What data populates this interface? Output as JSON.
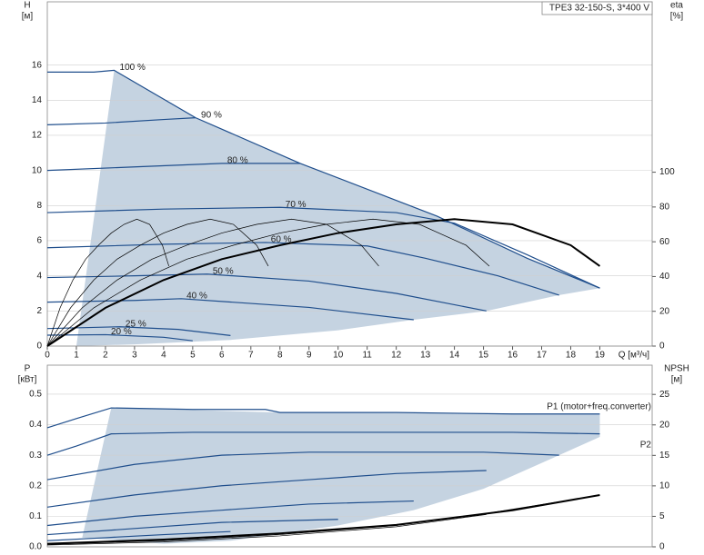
{
  "chart_data": [
    {
      "type": "line",
      "title": "TPE3 32-150-S, 3*400 V",
      "ylabel": "H",
      "yunit": "[м]",
      "y2label": "eta",
      "y2unit": "[%]",
      "xlabel": "Q [м³/ч]",
      "xlim": [
        0,
        20.8
      ],
      "xticks": [
        0,
        1,
        2,
        3,
        4,
        5,
        6,
        7,
        8,
        9,
        10,
        11,
        12,
        13,
        14,
        15,
        16,
        17,
        18,
        19
      ],
      "ylim": [
        0,
        19.6
      ],
      "yticks": [
        0,
        2,
        4,
        6,
        8,
        10,
        12,
        14,
        16
      ],
      "y2lim": [
        0,
        198
      ],
      "y2ticks": [
        0,
        20,
        40,
        60,
        80,
        100
      ],
      "grid": true,
      "label_position": "peak",
      "area_color": "#c5d3e1",
      "operating_area": {
        "x": [
          1.0,
          2.3,
          5.1,
          8.7,
          13.4,
          16.5,
          19,
          17.6,
          15.1,
          12.6,
          10,
          6.3,
          3,
          1.0
        ],
        "values": [
          0,
          15.7,
          13.0,
          10.4,
          7.4,
          5.0,
          3.3,
          2.9,
          2.0,
          1.5,
          0.9,
          0.35,
          0.1,
          0
        ]
      },
      "series": [
        {
          "name": "100 %",
          "color": "#1f4e8c",
          "x": [
            0,
            1.6,
            2.3,
            5.1,
            8.7,
            13.4,
            16.5,
            19
          ],
          "values": [
            15.6,
            15.6,
            15.7,
            13.0,
            10.4,
            7.4,
            5.0,
            3.3
          ]
        },
        {
          "name": "90 %",
          "color": "#1f4e8c",
          "x": [
            0,
            2,
            4,
            5.1
          ],
          "values": [
            12.6,
            12.7,
            12.9,
            13.0
          ]
        },
        {
          "name": "80 %",
          "color": "#1f4e8c",
          "x": [
            0,
            3,
            6,
            8.7
          ],
          "values": [
            10.0,
            10.2,
            10.4,
            10.4
          ]
        },
        {
          "name": "70 %",
          "color": "#1f4e8c",
          "x": [
            0,
            4,
            8,
            12,
            14,
            16.5,
            19
          ],
          "values": [
            7.6,
            7.8,
            7.9,
            7.6,
            7.0,
            5.2,
            3.3
          ]
        },
        {
          "name": "60 %",
          "color": "#1f4e8c",
          "x": [
            0,
            4,
            7.5,
            11,
            13,
            15.5,
            17.6
          ],
          "values": [
            5.6,
            5.8,
            5.9,
            5.7,
            5.0,
            4.0,
            2.9
          ]
        },
        {
          "name": "50 %",
          "color": "#1f4e8c",
          "x": [
            0,
            3,
            5.5,
            9,
            12,
            15.1
          ],
          "values": [
            3.9,
            4.0,
            4.1,
            3.7,
            3.0,
            2.0
          ]
        },
        {
          "name": "40 %",
          "color": "#1f4e8c",
          "x": [
            0,
            3,
            4.6,
            9,
            12.6
          ],
          "values": [
            2.5,
            2.6,
            2.7,
            2.2,
            1.5
          ]
        },
        {
          "name": "25 %",
          "color": "#1f4e8c",
          "x": [
            0,
            2.5,
            4.5,
            6.3
          ],
          "values": [
            1.0,
            1.1,
            0.95,
            0.6
          ]
        },
        {
          "name": "20 %",
          "color": "#1f4e8c",
          "x": [
            0,
            2,
            4,
            5
          ],
          "values": [
            0.62,
            0.65,
            0.5,
            0.3
          ]
        },
        {
          "axis": "y2",
          "color": "#000000",
          "line_width": 2,
          "x": [
            0,
            2,
            4,
            6,
            8,
            10,
            12,
            14,
            16,
            18,
            19
          ],
          "values": [
            0,
            22,
            38,
            50,
            58,
            65,
            70,
            73,
            70,
            58,
            46
          ]
        },
        {
          "axis": "y2",
          "color": "#000000",
          "line_width": 0.7,
          "x": [
            0,
            1.6,
            3.2,
            4.8,
            6.4,
            8,
            9.6,
            11.2,
            12.8,
            14.4,
            15.2
          ],
          "values": [
            0,
            22,
            38,
            50,
            58,
            65,
            70,
            73,
            70,
            58,
            46
          ]
        },
        {
          "axis": "y2",
          "color": "#000000",
          "line_width": 0.7,
          "x": [
            0,
            1.2,
            2.4,
            3.6,
            4.8,
            6,
            7.2,
            8.4,
            9.6,
            10.8,
            11.4
          ],
          "values": [
            0,
            22,
            38,
            50,
            58,
            65,
            70,
            73,
            70,
            58,
            46
          ]
        },
        {
          "axis": "y2",
          "color": "#000000",
          "line_width": 0.7,
          "x": [
            0,
            0.8,
            1.6,
            2.4,
            3.2,
            4,
            4.8,
            5.6,
            6.4,
            7.2,
            7.6
          ],
          "values": [
            0,
            22,
            38,
            50,
            58,
            65,
            70,
            73,
            70,
            58,
            46
          ]
        },
        {
          "axis": "y2",
          "color": "#000000",
          "line_width": 0.7,
          "x": [
            0,
            0.44,
            0.88,
            1.32,
            1.76,
            2.2,
            2.64,
            3.08,
            3.52,
            3.96,
            4.18
          ],
          "values": [
            0,
            22,
            38,
            50,
            58,
            65,
            70,
            73,
            70,
            58,
            46
          ]
        }
      ]
    },
    {
      "type": "line",
      "ylabel": "P",
      "yunit": "[кВт]",
      "y2label": "NPSH",
      "y2unit": "[м]",
      "xlim": [
        0,
        20.8
      ],
      "ylim": [
        0,
        0.595
      ],
      "yticks": [
        {
          "value": 0,
          "label": "0.0"
        },
        0.1,
        0.2,
        0.3,
        0.4,
        0.5
      ],
      "y2lim": [
        0,
        29.8
      ],
      "y2ticks": [
        0,
        5,
        10,
        15,
        20,
        25
      ],
      "grid": true,
      "label_position": "end",
      "area_color": "#c5d3e1",
      "operating_area": {
        "x": [
          1.2,
          2.2,
          8,
          19,
          19,
          17.6,
          15,
          12.6,
          10,
          6.3,
          4,
          1.2
        ],
        "values": [
          0.03,
          0.455,
          0.44,
          0.435,
          0.36,
          0.3,
          0.19,
          0.12,
          0.07,
          0.02,
          0.01,
          0.03
        ]
      },
      "series": [
        {
          "name": "P1 (motor+freq.converter)",
          "color": "#1f4e8c",
          "x": [
            0,
            1,
            2.2,
            5,
            7.5,
            8,
            12,
            16,
            19
          ],
          "values": [
            0.39,
            0.42,
            0.455,
            0.45,
            0.45,
            0.44,
            0.44,
            0.435,
            0.435
          ]
        },
        {
          "name": "P2",
          "color": "#1f4e8c",
          "x": [
            0,
            1,
            2.2,
            5,
            8,
            12,
            16,
            19
          ],
          "values": [
            0.3,
            0.33,
            0.37,
            0.375,
            0.375,
            0.375,
            0.375,
            0.37
          ]
        },
        {
          "color": "#1f4e8c",
          "x": [
            0,
            3,
            6,
            9,
            12,
            15,
            17.6
          ],
          "values": [
            0.22,
            0.27,
            0.3,
            0.31,
            0.31,
            0.31,
            0.3
          ]
        },
        {
          "color": "#1f4e8c",
          "x": [
            0,
            3,
            6,
            9,
            12,
            15.1
          ],
          "values": [
            0.13,
            0.17,
            0.2,
            0.22,
            0.24,
            0.25
          ]
        },
        {
          "color": "#1f4e8c",
          "x": [
            0,
            3,
            6,
            9,
            12.6
          ],
          "values": [
            0.07,
            0.1,
            0.12,
            0.14,
            0.15
          ]
        },
        {
          "color": "#1f4e8c",
          "x": [
            0,
            3,
            6,
            10
          ],
          "values": [
            0.04,
            0.06,
            0.08,
            0.09
          ]
        },
        {
          "color": "#1f4e8c",
          "x": [
            0,
            2,
            4,
            6.3
          ],
          "values": [
            0.02,
            0.03,
            0.04,
            0.05
          ]
        },
        {
          "axis": "y2",
          "color": "#000000",
          "line_width": 2,
          "x": [
            0,
            4,
            8,
            12,
            16,
            19
          ],
          "values": [
            0.5,
            1.2,
            2.2,
            3.6,
            6.0,
            8.5
          ]
        },
        {
          "axis": "y2",
          "color": "#000000",
          "line_width": 0.7,
          "x": [
            0,
            4,
            8,
            12,
            15,
            17.6
          ],
          "values": [
            0.4,
            1.0,
            2.0,
            3.5,
            5.4,
            7.4
          ]
        },
        {
          "axis": "y2",
          "color": "#000000",
          "line_width": 0.7,
          "x": [
            0,
            4,
            8,
            12,
            15.1
          ],
          "values": [
            0.3,
            0.8,
            1.8,
            3.3,
            5.3
          ]
        }
      ]
    }
  ]
}
